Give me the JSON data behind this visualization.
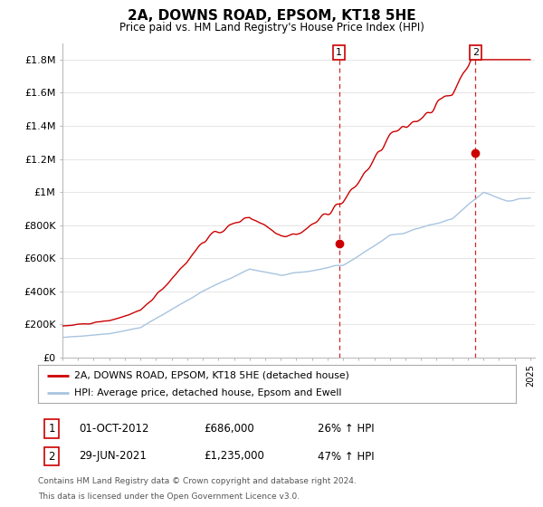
{
  "title": "2A, DOWNS ROAD, EPSOM, KT18 5HE",
  "subtitle": "Price paid vs. HM Land Registry's House Price Index (HPI)",
  "ylim": [
    0,
    1900000
  ],
  "yticks": [
    0,
    200000,
    400000,
    600000,
    800000,
    1000000,
    1200000,
    1400000,
    1600000,
    1800000
  ],
  "ytick_labels": [
    "£0",
    "£200K",
    "£400K",
    "£600K",
    "£800K",
    "£1M",
    "£1.2M",
    "£1.4M",
    "£1.6M",
    "£1.8M"
  ],
  "sale1_year": 2012.75,
  "sale1_price": 686000,
  "sale2_year": 2021.49,
  "sale2_price": 1235000,
  "hpi_color": "#a8c4e0",
  "price_color": "#cc0000",
  "vline_color": "#cc0000",
  "background_color": "#ffffff",
  "grid_color": "#e0e0e0",
  "legend_label_price": "2A, DOWNS ROAD, EPSOM, KT18 5HE (detached house)",
  "legend_label_hpi": "HPI: Average price, detached house, Epsom and Ewell",
  "sale1_date": "01-OCT-2012",
  "sale1_amount": "£686,000",
  "sale1_pct": "26% ↑ HPI",
  "sale2_date": "29-JUN-2021",
  "sale2_amount": "£1,235,000",
  "sale2_pct": "47% ↑ HPI",
  "footnote1": "Contains HM Land Registry data © Crown copyright and database right 2024.",
  "footnote2": "This data is licensed under the Open Government Licence v3.0."
}
